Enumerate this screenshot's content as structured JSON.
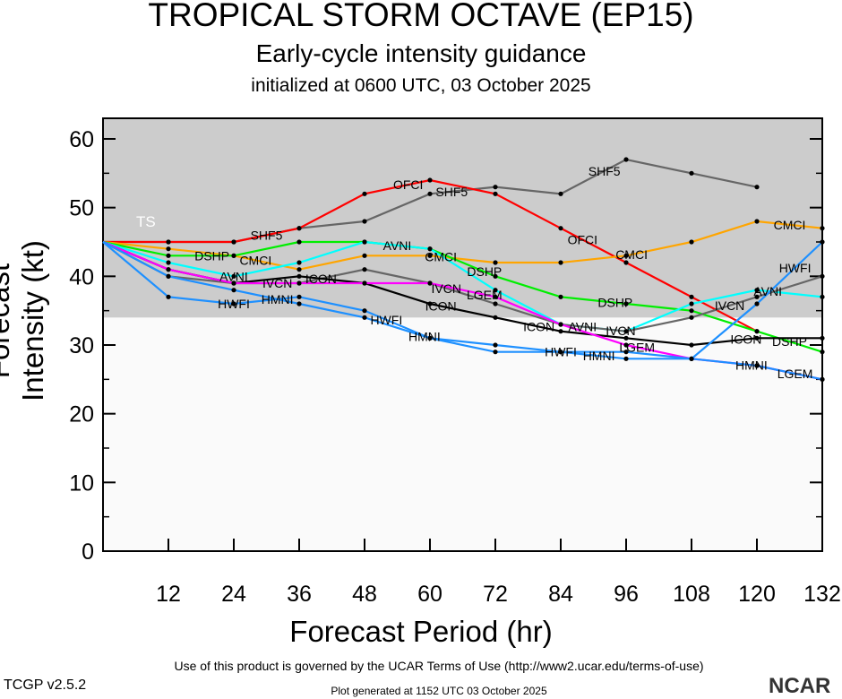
{
  "title": "TROPICAL STORM OCTAVE (EP15)",
  "subtitle": "Early-cycle intensity guidance",
  "init": "initialized at 0600 UTC, 03 October 2025",
  "terms": "Use of this product is governed by the UCAR Terms of Use (http://www2.ucar.edu/terms-of-use)",
  "generated": "Plot generated at 1152 UTC   03 October 2025",
  "version": "TCGP v2.5.2",
  "logo": "NCAR",
  "chart_data": {
    "type": "line",
    "xlabel": "Forecast Period (hr)",
    "ylabel": "Forecast Intensity (kt)",
    "xlim": [
      0,
      132
    ],
    "ylim": [
      0,
      63
    ],
    "xticks": [
      12,
      24,
      36,
      48,
      60,
      72,
      84,
      96,
      108,
      120,
      132
    ],
    "yticks": [
      0,
      10,
      20,
      30,
      40,
      50,
      60
    ],
    "band": {
      "label": "TS",
      "from": 34,
      "to": 63,
      "color": "#cccccc"
    },
    "background": "#fafafa",
    "series": [
      {
        "name": "SHF5",
        "color": "#666666",
        "x": [
          0,
          12,
          24,
          36,
          48,
          60,
          72,
          84,
          96,
          108,
          120
        ],
        "y": [
          45,
          45,
          45,
          47,
          48,
          52,
          53,
          52,
          57,
          55,
          53
        ],
        "label_at": [
          30,
          64,
          92
        ]
      },
      {
        "name": "OFCI",
        "color": "#ff0000",
        "x": [
          0,
          12,
          24,
          36,
          48,
          60,
          72,
          84,
          96,
          108,
          120
        ],
        "y": [
          45,
          45,
          45,
          47,
          52,
          54,
          52,
          47,
          42,
          37,
          32
        ],
        "label_at": [
          58,
          88
        ]
      },
      {
        "name": "CMCI",
        "color": "#ffa500",
        "x": [
          0,
          12,
          24,
          36,
          48,
          60,
          72,
          84,
          96,
          108,
          120,
          132
        ],
        "y": [
          45,
          44,
          43,
          41,
          43,
          43,
          42,
          42,
          43,
          45,
          48,
          47
        ],
        "label_at": [
          28,
          62,
          97,
          126
        ]
      },
      {
        "name": "DSHP",
        "color": "#00ee00",
        "x": [
          0,
          12,
          24,
          36,
          48,
          60,
          72,
          84,
          96,
          108,
          120,
          132
        ],
        "y": [
          45,
          43,
          43,
          45,
          45,
          44,
          40,
          37,
          36,
          35,
          32,
          29
        ],
        "label_at": [
          28,
          62,
          94,
          126
        ]
      },
      {
        "name": "AVNI",
        "color": "#00ffff",
        "x": [
          0,
          12,
          24,
          36,
          48,
          60,
          72,
          84,
          96,
          108,
          120,
          132
        ],
        "y": [
          45,
          42,
          40,
          42,
          45,
          44,
          38,
          33,
          32,
          36,
          38,
          37
        ],
        "label_at": [
          28,
          60,
          88,
          122
        ]
      },
      {
        "name": "IVCN",
        "color": "#666666",
        "x": [
          0,
          12,
          24,
          36,
          48,
          60,
          72,
          84,
          96,
          108,
          120,
          132
        ],
        "y": [
          45,
          40,
          39,
          39,
          41,
          39,
          36,
          33,
          32,
          34,
          37,
          40
        ],
        "label_at": [
          28,
          63,
          91,
          125
        ]
      },
      {
        "name": "ICON",
        "color": "#000000",
        "x": [
          0,
          12,
          24,
          36,
          48,
          60,
          72,
          84,
          96,
          108,
          120,
          132
        ],
        "y": [
          45,
          41,
          39,
          40,
          39,
          36,
          34,
          32,
          31,
          30,
          31,
          31
        ],
        "label_at": [
          30,
          62,
          90,
          126
        ]
      },
      {
        "name": "LGEM",
        "color": "#ff00ff",
        "x": [
          0,
          12,
          24,
          36,
          48,
          60,
          72,
          84,
          96,
          108,
          120,
          132
        ],
        "y": [
          45,
          41,
          39,
          39,
          39,
          39,
          37,
          33,
          30,
          28,
          27,
          25
        ],
        "label_at": [
          64,
          92,
          127
        ]
      },
      {
        "name": "HMNI",
        "color": "#1e90ff",
        "x": [
          0,
          12,
          24,
          36,
          48,
          60,
          72,
          84,
          96,
          108,
          120,
          132
        ],
        "y": [
          45,
          40,
          38,
          36,
          34,
          31,
          29,
          29,
          28,
          28,
          27,
          25
        ],
        "label_at": [
          26,
          59,
          95,
          125
        ]
      },
      {
        "name": "HWFI",
        "color": "#1e90ff",
        "x": [
          0,
          12,
          24,
          36,
          48,
          60,
          72,
          84,
          96,
          108,
          120,
          132
        ],
        "y": [
          45,
          37,
          36,
          37,
          35,
          31,
          30,
          29,
          29,
          28,
          36,
          45
        ],
        "label_at": [
          24,
          58,
          90,
          123
        ]
      }
    ]
  }
}
